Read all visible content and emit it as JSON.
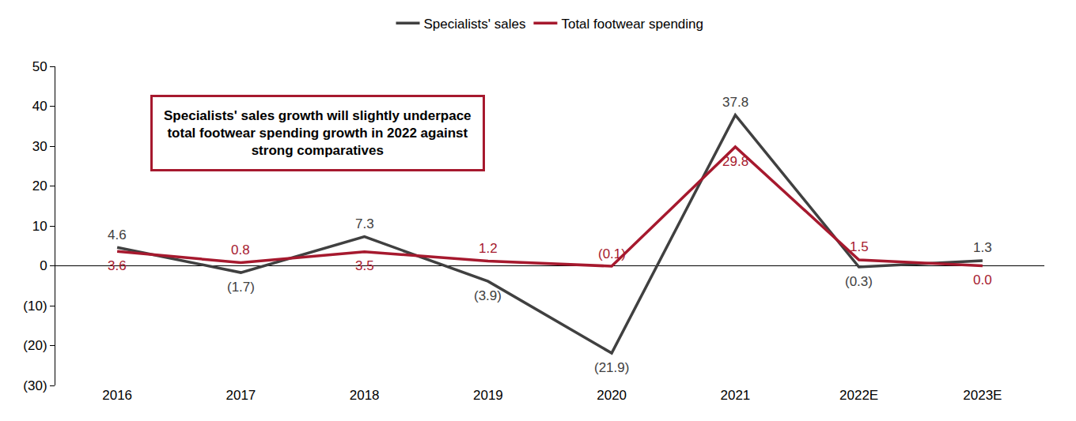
{
  "chart_data": {
    "type": "line",
    "categories": [
      "2016",
      "2017",
      "2018",
      "2019",
      "2020",
      "2021",
      "2022E",
      "2023E"
    ],
    "series": [
      {
        "name": "Specialists' sales",
        "color": "#404040",
        "line_style": "solid",
        "values": [
          4.6,
          -1.7,
          7.3,
          -3.9,
          -21.9,
          37.8,
          -0.3,
          1.3
        ],
        "value_labels": [
          "4.6",
          "(1.7)",
          "7.3",
          "(3.9)",
          "(21.9)",
          "37.8",
          "(0.3)",
          "1.3"
        ]
      },
      {
        "name": "Total footwear spending",
        "color": "#A6192E",
        "line_style": "solid",
        "values": [
          3.6,
          0.8,
          3.5,
          1.2,
          -0.1,
          29.8,
          1.5,
          0.0
        ],
        "value_labels": [
          "3.6",
          "0.8",
          "3.5",
          "1.2",
          "(0.1)",
          "29.8",
          "1.5",
          "0.0"
        ]
      }
    ],
    "ylim": [
      -30,
      50
    ],
    "yticks": [
      {
        "value": -30,
        "label": "(30)"
      },
      {
        "value": -20,
        "label": "(20)"
      },
      {
        "value": -10,
        "label": "(10)"
      },
      0,
      10,
      20,
      30,
      40,
      50
    ],
    "grid": false,
    "legend": "top",
    "data_labels": true,
    "annotations": [
      {
        "text": "Specialists' sales growth will slightly underpace\ntotal footwear spending growth in 2022 against\nstrong comparatives",
        "color": "#A6192E"
      }
    ]
  }
}
